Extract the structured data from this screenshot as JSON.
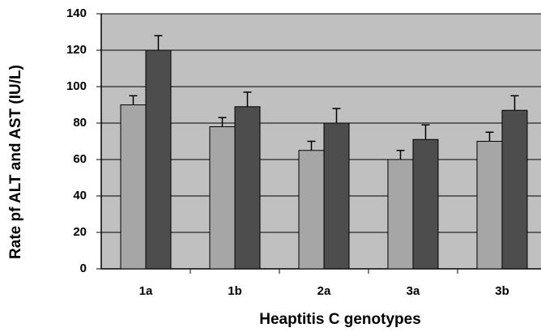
{
  "chart_data": {
    "type": "bar",
    "x_label": "Heaptitis C genotypes",
    "y_label": "Rate pf ALT and AST (IU/L)",
    "categories": [
      "1a",
      "1b",
      "2a",
      "3a",
      "3b"
    ],
    "series": [
      {
        "color": "#a6a6a6",
        "values": [
          90,
          78,
          65,
          60,
          70
        ],
        "errors": [
          5,
          5,
          5,
          5,
          5
        ]
      },
      {
        "color": "#4d4d4d",
        "values": [
          120,
          89,
          80,
          71,
          87
        ],
        "errors": [
          8,
          8,
          8,
          8,
          8
        ]
      }
    ],
    "ylim": [
      0,
      140
    ],
    "yticks": [
      0,
      20,
      40,
      60,
      80,
      100,
      120,
      140
    ],
    "grid": true,
    "background": "#c0c0c0"
  }
}
